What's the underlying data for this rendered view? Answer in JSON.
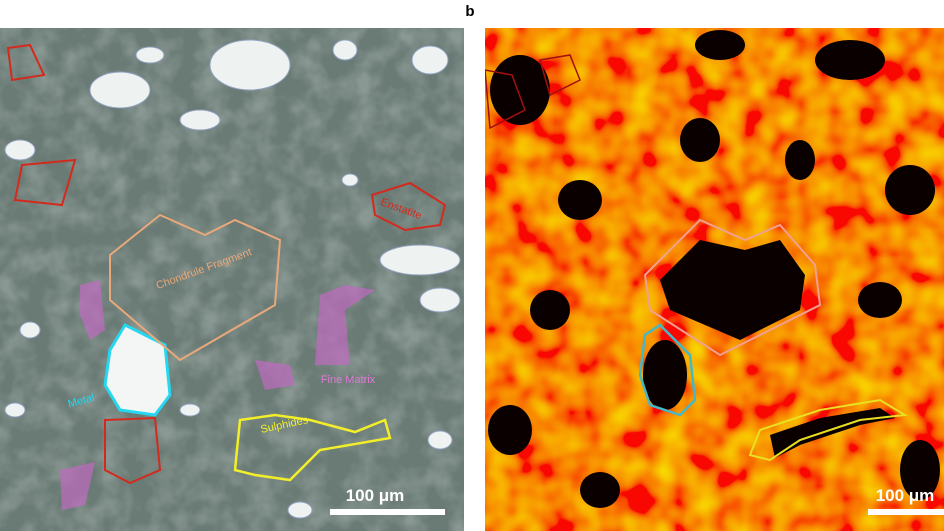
{
  "panel_b_label": "b",
  "left_panel": {
    "labels": {
      "chondrule": "Chondrule Fragment",
      "enstatite": "Enstatite",
      "metal": "Metal",
      "fine_matrix": "Fine Matrix",
      "sulphides": "Sulphides"
    },
    "scale_bar": "100 μm"
  },
  "right_panel": {
    "scale_bar": "100 μm"
  }
}
